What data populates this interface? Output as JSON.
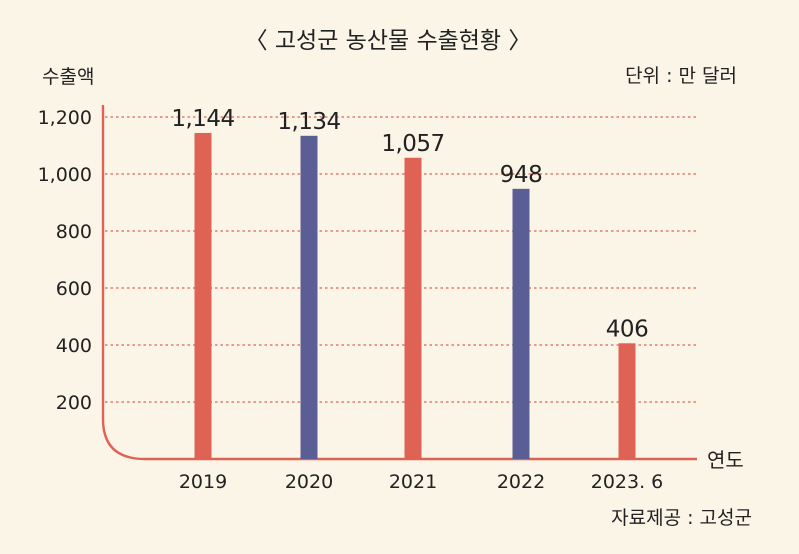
{
  "chart_data": {
    "type": "bar",
    "title": "〈 고성군 농산물 수출현황 〉",
    "ylabel": "수출액",
    "xlabel": "연도",
    "unit_note": "단위 : 만 달러",
    "source": "자료제공 : 고성군",
    "categories": [
      "2019",
      "2020",
      "2021",
      "2022",
      "2023. 6"
    ],
    "values": [
      1144,
      1134,
      1057,
      948,
      406
    ],
    "value_labels": [
      "1,144",
      "1,134",
      "1,057",
      "948",
      "406"
    ],
    "bar_colors": [
      "#de6355",
      "#5b5e94",
      "#de6355",
      "#5b5e94",
      "#de6355"
    ],
    "yticks": [
      {
        "value": 200,
        "label": "200"
      },
      {
        "value": 400,
        "label": "400"
      },
      {
        "value": 600,
        "label": "600"
      },
      {
        "value": 800,
        "label": "800"
      },
      {
        "value": 1000,
        "label": "1,000"
      },
      {
        "value": 1200,
        "label": "1,200"
      }
    ],
    "ylim": [
      0,
      1200
    ],
    "grid": true,
    "axis_color": "#de6355"
  }
}
